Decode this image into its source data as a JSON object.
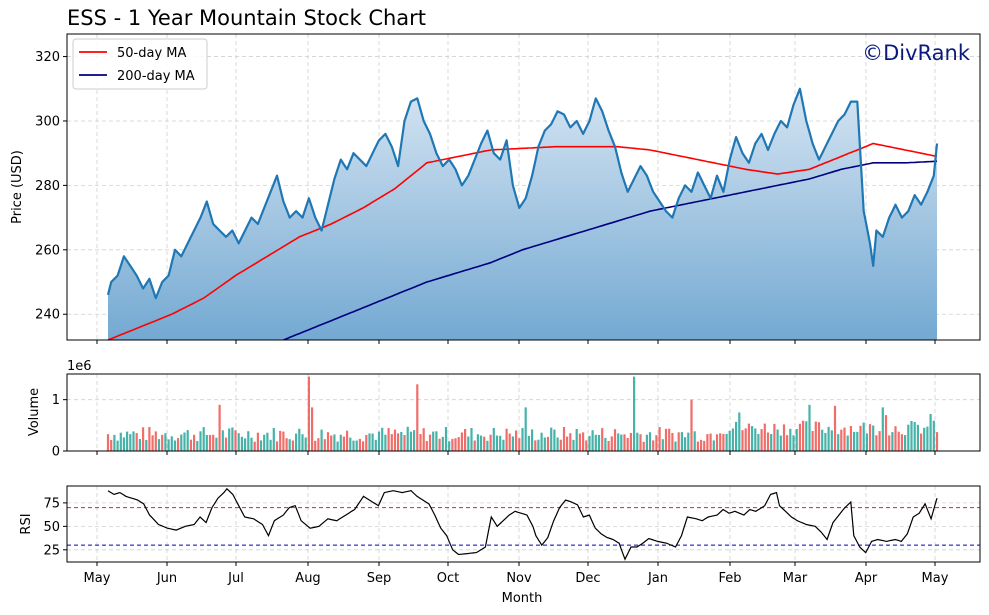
{
  "chart_data": {
    "title": "ESS - 1 Year Mountain Stock Chart",
    "watermark": "©DivRank",
    "xlabel": "Month",
    "x_ticks": [
      "May",
      "Jun",
      "Jul",
      "Aug",
      "Sep",
      "Oct",
      "Nov",
      "Dec",
      "Jan",
      "Feb",
      "Mar",
      "Apr",
      "May"
    ],
    "price": {
      "type": "area",
      "ylabel": "Price (USD)",
      "ylim": [
        232,
        327
      ],
      "yticks": [
        240,
        260,
        280,
        300,
        320
      ],
      "legend": [
        "50-day MA",
        "200-day MA"
      ],
      "legend_position": "top-left",
      "colors": {
        "price": "#1f77b4",
        "ma50": "#ff0000",
        "ma200": "#00007f",
        "fill_top": "#d4e4f2",
        "fill_bottom": "#74a9d2"
      },
      "close_keypoints": [
        [
          0,
          246
        ],
        [
          1,
          250
        ],
        [
          3,
          252
        ],
        [
          5,
          258
        ],
        [
          7,
          255
        ],
        [
          9,
          252
        ],
        [
          11,
          248
        ],
        [
          13,
          251
        ],
        [
          15,
          245
        ],
        [
          17,
          250
        ],
        [
          19,
          252
        ],
        [
          21,
          260
        ],
        [
          23,
          258
        ],
        [
          25,
          262
        ],
        [
          27,
          266
        ],
        [
          29,
          270
        ],
        [
          31,
          275
        ],
        [
          33,
          268
        ],
        [
          35,
          266
        ],
        [
          37,
          264
        ],
        [
          39,
          266
        ],
        [
          41,
          262
        ],
        [
          43,
          266
        ],
        [
          45,
          270
        ],
        [
          47,
          268
        ],
        [
          49,
          273
        ],
        [
          51,
          278
        ],
        [
          53,
          283
        ],
        [
          55,
          275
        ],
        [
          57,
          270
        ],
        [
          59,
          272
        ],
        [
          61,
          270
        ],
        [
          63,
          276
        ],
        [
          65,
          270
        ],
        [
          67,
          266
        ],
        [
          69,
          274
        ],
        [
          71,
          282
        ],
        [
          73,
          288
        ],
        [
          75,
          285
        ],
        [
          77,
          290
        ],
        [
          79,
          288
        ],
        [
          81,
          286
        ],
        [
          83,
          290
        ],
        [
          85,
          294
        ],
        [
          87,
          296
        ],
        [
          89,
          292
        ],
        [
          91,
          286
        ],
        [
          93,
          300
        ],
        [
          95,
          306
        ],
        [
          97,
          307
        ],
        [
          99,
          300
        ],
        [
          101,
          296
        ],
        [
          103,
          290
        ],
        [
          105,
          286
        ],
        [
          107,
          288
        ],
        [
          109,
          285
        ],
        [
          111,
          280
        ],
        [
          113,
          283
        ],
        [
          115,
          288
        ],
        [
          117,
          293
        ],
        [
          119,
          297
        ],
        [
          121,
          290
        ],
        [
          123,
          288
        ],
        [
          125,
          294
        ],
        [
          127,
          280
        ],
        [
          129,
          273
        ],
        [
          131,
          276
        ],
        [
          133,
          283
        ],
        [
          135,
          292
        ],
        [
          137,
          297
        ],
        [
          139,
          299
        ],
        [
          141,
          303
        ],
        [
          143,
          302
        ],
        [
          145,
          298
        ],
        [
          147,
          300
        ],
        [
          149,
          296
        ],
        [
          151,
          300
        ],
        [
          153,
          307
        ],
        [
          155,
          303
        ],
        [
          157,
          297
        ],
        [
          159,
          292
        ],
        [
          161,
          284
        ],
        [
          163,
          278
        ],
        [
          165,
          282
        ],
        [
          167,
          286
        ],
        [
          169,
          283
        ],
        [
          171,
          278
        ],
        [
          173,
          275
        ],
        [
          175,
          272
        ],
        [
          177,
          270
        ],
        [
          179,
          276
        ],
        [
          181,
          280
        ],
        [
          183,
          278
        ],
        [
          185,
          284
        ],
        [
          187,
          280
        ],
        [
          189,
          276
        ],
        [
          191,
          283
        ],
        [
          193,
          278
        ],
        [
          195,
          288
        ],
        [
          197,
          295
        ],
        [
          199,
          290
        ],
        [
          201,
          287
        ],
        [
          203,
          293
        ],
        [
          205,
          296
        ],
        [
          207,
          291
        ],
        [
          209,
          296
        ],
        [
          211,
          300
        ],
        [
          213,
          298
        ],
        [
          215,
          305
        ],
        [
          217,
          310
        ],
        [
          219,
          300
        ],
        [
          221,
          293
        ],
        [
          223,
          288
        ],
        [
          225,
          292
        ],
        [
          227,
          296
        ],
        [
          229,
          300
        ],
        [
          231,
          302
        ],
        [
          233,
          306
        ],
        [
          235,
          306
        ],
        [
          237,
          272
        ],
        [
          239,
          262
        ],
        [
          240,
          255
        ],
        [
          241,
          266
        ],
        [
          243,
          264
        ],
        [
          245,
          270
        ],
        [
          247,
          274
        ],
        [
          249,
          270
        ],
        [
          251,
          272
        ],
        [
          253,
          277
        ],
        [
          255,
          274
        ],
        [
          257,
          278
        ],
        [
          259,
          283
        ],
        [
          260,
          293
        ]
      ],
      "ma50_keypoints": [
        [
          0,
          232
        ],
        [
          10,
          236
        ],
        [
          20,
          240
        ],
        [
          30,
          245
        ],
        [
          40,
          252
        ],
        [
          50,
          258
        ],
        [
          60,
          264
        ],
        [
          70,
          268
        ],
        [
          80,
          273
        ],
        [
          90,
          279
        ],
        [
          100,
          287
        ],
        [
          110,
          289
        ],
        [
          120,
          291
        ],
        [
          130,
          291.5
        ],
        [
          140,
          292
        ],
        [
          150,
          292
        ],
        [
          160,
          292
        ],
        [
          170,
          291
        ],
        [
          180,
          289
        ],
        [
          190,
          287
        ],
        [
          200,
          285
        ],
        [
          210,
          283.5
        ],
        [
          220,
          285
        ],
        [
          230,
          289
        ],
        [
          240,
          293
        ],
        [
          250,
          291
        ],
        [
          260,
          289
        ]
      ],
      "ma200_keypoints": [
        [
          55,
          232
        ],
        [
          70,
          238
        ],
        [
          80,
          242
        ],
        [
          90,
          246
        ],
        [
          100,
          250
        ],
        [
          110,
          253
        ],
        [
          120,
          256
        ],
        [
          130,
          260
        ],
        [
          140,
          263
        ],
        [
          150,
          266
        ],
        [
          160,
          269
        ],
        [
          170,
          272
        ],
        [
          180,
          274
        ],
        [
          190,
          276
        ],
        [
          200,
          278
        ],
        [
          210,
          280
        ],
        [
          220,
          282
        ],
        [
          230,
          285
        ],
        [
          240,
          287
        ],
        [
          250,
          287
        ],
        [
          260,
          287.5
        ]
      ]
    },
    "volume": {
      "type": "bar",
      "ylabel": "Volume",
      "offset_label": "1e6",
      "ylim": [
        0,
        1500000
      ],
      "yticks": [
        0,
        1
      ],
      "colors": {
        "up": "#26a69a",
        "down": "#ef5350"
      },
      "peaks": [
        {
          "i": 35,
          "v": 900000,
          "dir": "down"
        },
        {
          "i": 63,
          "v": 1450000,
          "dir": "down"
        },
        {
          "i": 64,
          "v": 850000,
          "dir": "down"
        },
        {
          "i": 97,
          "v": 1300000,
          "dir": "down"
        },
        {
          "i": 131,
          "v": 850000,
          "dir": "up"
        },
        {
          "i": 165,
          "v": 1450000,
          "dir": "up"
        },
        {
          "i": 183,
          "v": 1000000,
          "dir": "down"
        },
        {
          "i": 198,
          "v": 750000,
          "dir": "up"
        },
        {
          "i": 220,
          "v": 900000,
          "dir": "up"
        },
        {
          "i": 228,
          "v": 880000,
          "dir": "down"
        },
        {
          "i": 243,
          "v": 850000,
          "dir": "up"
        },
        {
          "i": 244,
          "v": 700000,
          "dir": "down"
        },
        {
          "i": 258,
          "v": 720000,
          "dir": "up"
        }
      ]
    },
    "rsi": {
      "type": "line",
      "ylabel": "RSI",
      "ylim": [
        12,
        93
      ],
      "yticks": [
        25,
        50,
        75
      ],
      "overbought": 70,
      "oversold": 30,
      "colors": {
        "line": "#000000",
        "overbought": "#d62728",
        "oversold": "#0000cc"
      },
      "keypoints": [
        [
          0,
          88
        ],
        [
          2,
          84
        ],
        [
          4,
          86
        ],
        [
          6,
          82
        ],
        [
          8,
          80
        ],
        [
          10,
          78
        ],
        [
          12,
          74
        ],
        [
          14,
          62
        ],
        [
          17,
          52
        ],
        [
          20,
          48
        ],
        [
          23,
          46
        ],
        [
          26,
          50
        ],
        [
          29,
          52
        ],
        [
          31,
          60
        ],
        [
          33,
          54
        ],
        [
          35,
          70
        ],
        [
          37,
          80
        ],
        [
          39,
          86
        ],
        [
          40,
          90
        ],
        [
          42,
          84
        ],
        [
          44,
          72
        ],
        [
          46,
          60
        ],
        [
          49,
          58
        ],
        [
          52,
          52
        ],
        [
          54,
          40
        ],
        [
          56,
          56
        ],
        [
          59,
          62
        ],
        [
          61,
          70
        ],
        [
          63,
          72
        ],
        [
          65,
          56
        ],
        [
          68,
          48
        ],
        [
          71,
          50
        ],
        [
          74,
          58
        ],
        [
          77,
          56
        ],
        [
          80,
          62
        ],
        [
          83,
          68
        ],
        [
          86,
          82
        ],
        [
          89,
          76
        ],
        [
          91,
          72
        ],
        [
          93,
          86
        ],
        [
          96,
          88
        ],
        [
          99,
          86
        ],
        [
          102,
          88
        ],
        [
          104,
          82
        ],
        [
          106,
          78
        ],
        [
          108,
          74
        ],
        [
          110,
          62
        ],
        [
          112,
          48
        ],
        [
          114,
          40
        ],
        [
          116,
          25
        ],
        [
          118,
          20
        ],
        [
          121,
          21
        ],
        [
          124,
          22
        ],
        [
          127,
          28
        ],
        [
          129,
          60
        ],
        [
          131,
          50
        ],
        [
          133,
          56
        ],
        [
          135,
          62
        ],
        [
          137,
          66
        ],
        [
          139,
          64
        ],
        [
          141,
          62
        ],
        [
          143,
          50
        ],
        [
          144,
          40
        ],
        [
          146,
          30
        ],
        [
          148,
          38
        ],
        [
          150,
          56
        ],
        [
          152,
          70
        ],
        [
          154,
          78
        ],
        [
          156,
          76
        ],
        [
          158,
          73
        ],
        [
          160,
          60
        ],
        [
          162,
          62
        ],
        [
          164,
          48
        ],
        [
          166,
          42
        ],
        [
          168,
          38
        ],
        [
          170,
          36
        ],
        [
          172,
          32
        ],
        [
          174,
          15
        ],
        [
          176,
          28
        ],
        [
          178,
          28
        ],
        [
          180,
          32
        ],
        [
          182,
          37
        ],
        [
          185,
          34
        ],
        [
          188,
          32
        ],
        [
          191,
          28
        ],
        [
          193,
          40
        ],
        [
          195,
          60
        ],
        [
          198,
          58
        ],
        [
          200,
          56
        ],
        [
          202,
          60
        ],
        [
          205,
          62
        ],
        [
          207,
          68
        ],
        [
          209,
          64
        ],
        [
          211,
          66
        ],
        [
          214,
          62
        ],
        [
          216,
          68
        ],
        [
          218,
          66
        ],
        [
          221,
          72
        ],
        [
          223,
          84
        ],
        [
          225,
          86
        ],
        [
          226,
          72
        ],
        [
          228,
          66
        ],
        [
          230,
          60
        ],
        [
          232,
          56
        ],
        [
          235,
          52
        ],
        [
          238,
          50
        ],
        [
          240,
          44
        ],
        [
          242,
          36
        ],
        [
          244,
          54
        ],
        [
          246,
          62
        ],
        [
          248,
          70
        ],
        [
          250,
          76
        ],
        [
          251,
          40
        ],
        [
          253,
          28
        ],
        [
          255,
          22
        ],
        [
          257,
          34
        ],
        [
          259,
          36
        ],
        [
          262,
          34
        ],
        [
          265,
          36
        ],
        [
          267,
          34
        ],
        [
          269,
          42
        ],
        [
          271,
          60
        ],
        [
          273,
          64
        ],
        [
          275,
          74
        ],
        [
          277,
          58
        ],
        [
          279,
          80
        ]
      ]
    }
  }
}
